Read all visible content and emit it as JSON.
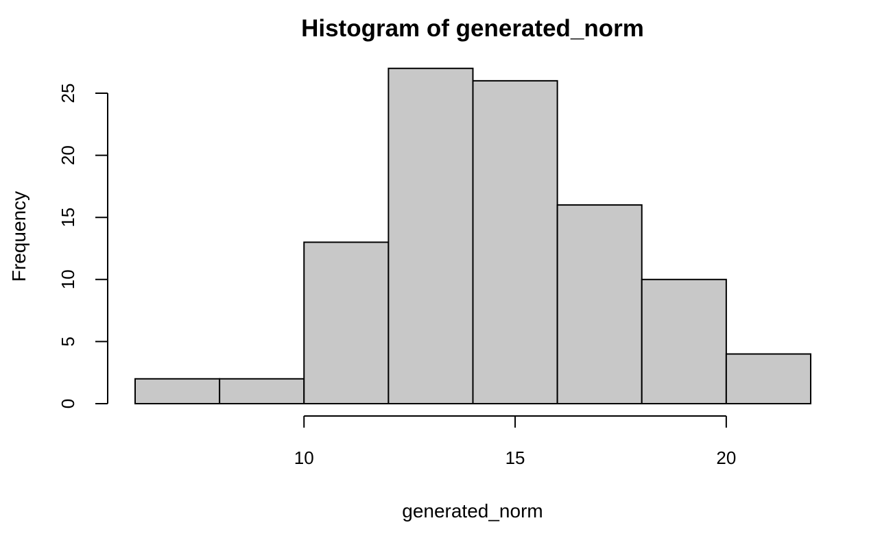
{
  "chart_data": {
    "type": "histogram",
    "title": "Histogram of generated_norm",
    "xlabel": "generated_norm",
    "ylabel": "Frequency",
    "bins": [
      {
        "start": 6,
        "end": 8,
        "count": 2
      },
      {
        "start": 8,
        "end": 10,
        "count": 2
      },
      {
        "start": 10,
        "end": 12,
        "count": 13
      },
      {
        "start": 12,
        "end": 14,
        "count": 27
      },
      {
        "start": 14,
        "end": 16,
        "count": 26
      },
      {
        "start": 16,
        "end": 18,
        "count": 16
      },
      {
        "start": 18,
        "end": 20,
        "count": 10
      },
      {
        "start": 20,
        "end": 22,
        "count": 4
      }
    ],
    "xlim": [
      6,
      22
    ],
    "ylim": [
      0,
      27
    ],
    "x_ticks": [
      10,
      15,
      20
    ],
    "y_ticks": [
      0,
      5,
      10,
      15,
      20,
      25
    ],
    "grid": false,
    "bar_color": "#c8c8c8",
    "border_color": "#000000"
  }
}
